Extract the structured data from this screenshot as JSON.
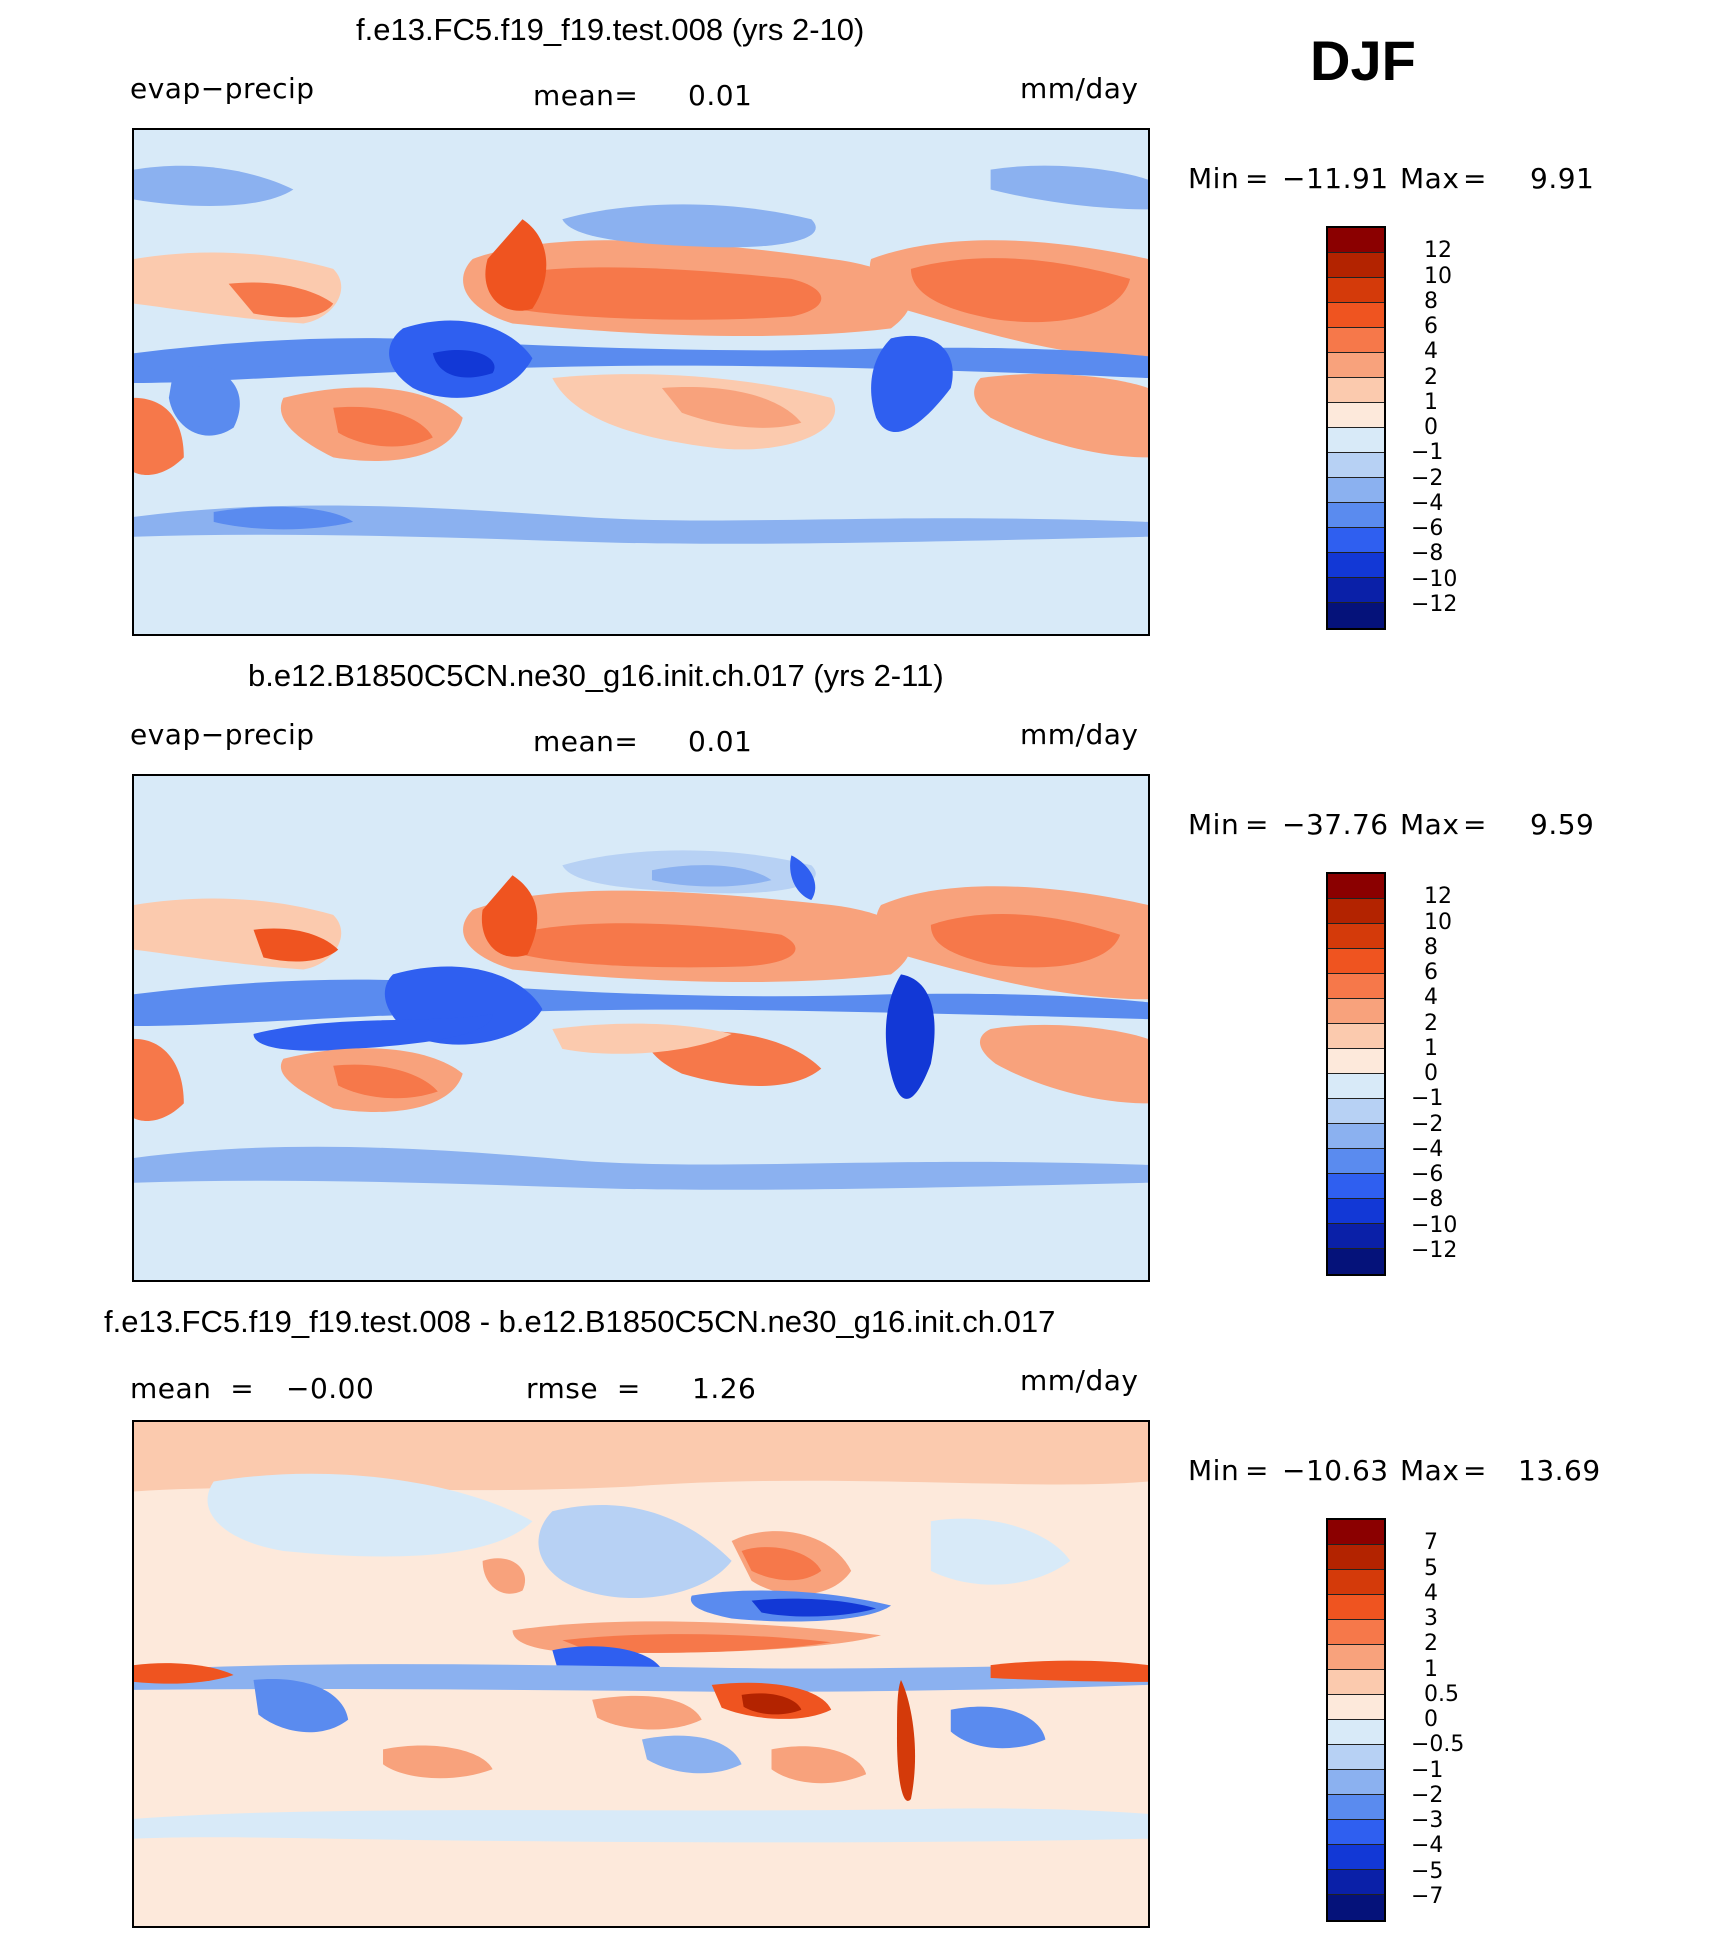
{
  "season": "DJF",
  "panels": [
    {
      "title": "f.e13.FC5.f19_f19.test.008 (yrs 2-10)",
      "left_label": "evap−precip",
      "center_label": "mean=",
      "center_value": "0.01",
      "right_label": "mm/day",
      "min_label": "Min",
      "min_value": "−11.91",
      "max_label": "Max",
      "max_value": "9.91",
      "colorbar_labels": [
        "12",
        "10",
        "8",
        "6",
        "4",
        "2",
        "1",
        "0",
        "−1",
        "−2",
        "−4",
        "−6",
        "−8",
        "−10",
        "−12"
      ],
      "colors": [
        "#8b0000",
        "#b32300",
        "#d43a0a",
        "#ef5420",
        "#f6784a",
        "#f8a27c",
        "#fbcaae",
        "#fde9db",
        "#d8eaf8",
        "#b7d1f4",
        "#8bb1f0",
        "#5a8bef",
        "#2f5ff0",
        "#1238d6",
        "#0a20a8",
        "#05127a"
      ]
    },
    {
      "title": "b.e12.B1850C5CN.ne30_g16.init.ch.017 (yrs 2-11)",
      "left_label": "evap−precip",
      "center_label": "mean=",
      "center_value": "0.01",
      "right_label": "mm/day",
      "min_label": "Min",
      "min_value": "−37.76",
      "max_label": "Max",
      "max_value": "9.59",
      "colorbar_labels": [
        "12",
        "10",
        "8",
        "6",
        "4",
        "2",
        "1",
        "0",
        "−1",
        "−2",
        "−4",
        "−6",
        "−8",
        "−10",
        "−12"
      ],
      "colors": [
        "#8b0000",
        "#b32300",
        "#d43a0a",
        "#ef5420",
        "#f6784a",
        "#f8a27c",
        "#fbcaae",
        "#fde9db",
        "#d8eaf8",
        "#b7d1f4",
        "#8bb1f0",
        "#5a8bef",
        "#2f5ff0",
        "#1238d6",
        "#0a20a8",
        "#05127a"
      ]
    },
    {
      "title": "f.e13.FC5.f19_f19.test.008 - b.e12.B1850C5CN.ne30_g16.init.ch.017",
      "left_label": "mean  =",
      "left_value": "−0.00",
      "center_label": "rmse  =",
      "center_value": "1.26",
      "right_label": "mm/day",
      "min_label": "Min",
      "min_value": "−10.63",
      "max_label": "Max",
      "max_value": "13.69",
      "colorbar_labels": [
        "7",
        "5",
        "4",
        "3",
        "2",
        "1",
        "0.5",
        "0",
        "−0.5",
        "−1",
        "−2",
        "−3",
        "−4",
        "−5",
        "−7"
      ],
      "colors": [
        "#8b0000",
        "#b32300",
        "#d43a0a",
        "#ef5420",
        "#f6784a",
        "#f8a27c",
        "#fbcaae",
        "#fde9db",
        "#d8eaf8",
        "#b7d1f4",
        "#8bb1f0",
        "#5a8bef",
        "#2f5ff0",
        "#1238d6",
        "#0a20a8",
        "#05127a"
      ]
    }
  ]
}
